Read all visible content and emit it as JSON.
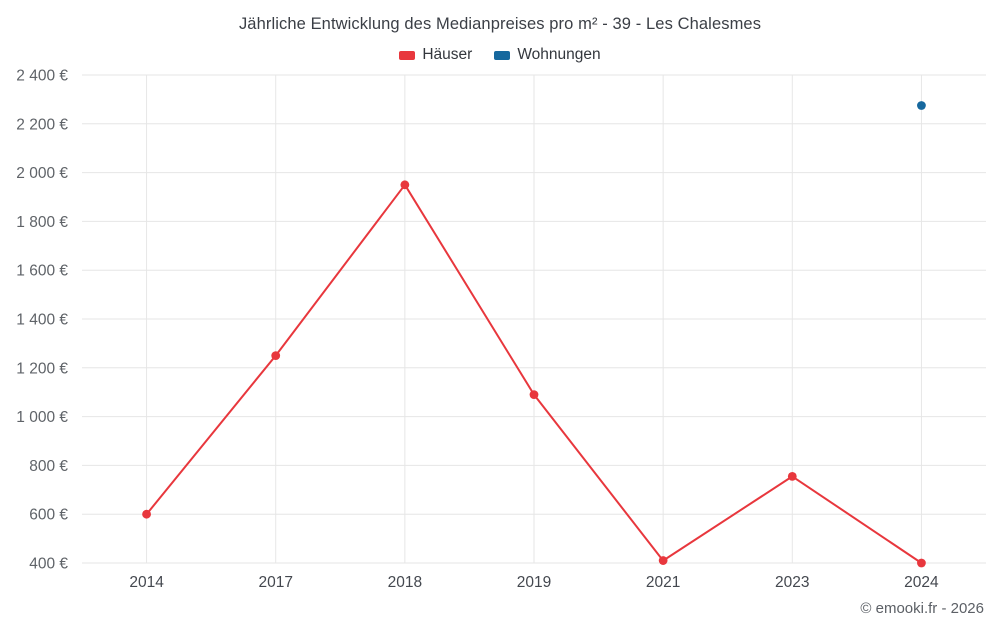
{
  "header": {
    "title": "Jährliche Entwicklung des Medianpreises pro m² - 39 - Les Chalesmes"
  },
  "footer": {
    "credit": "© emooki.fr - 2026"
  },
  "chart_data": {
    "type": "line",
    "title": "Jährliche Entwicklung des Medianpreises pro m² - 39 - Les Chalesmes",
    "categories": [
      "2014",
      "2017",
      "2018",
      "2019",
      "2021",
      "2023",
      "2024"
    ],
    "series": [
      {
        "name": "Häuser",
        "color": "#e8373d",
        "marker": "circle",
        "values": [
          600,
          1250,
          1950,
          1090,
          410,
          755,
          400
        ]
      },
      {
        "name": "Wohnungen",
        "color": "#16689e",
        "marker": "circle",
        "values": [
          null,
          null,
          null,
          null,
          null,
          null,
          2275
        ]
      }
    ],
    "ylim": [
      400,
      2400
    ],
    "ytick_step": 200,
    "y_suffix": " €",
    "xlabel": "",
    "ylabel": "",
    "grid": true,
    "legend_position": "top",
    "colors": {
      "gridline": "#e6e6e6",
      "tick_label": "#5f6368",
      "title_text": "#3b3f46"
    }
  }
}
